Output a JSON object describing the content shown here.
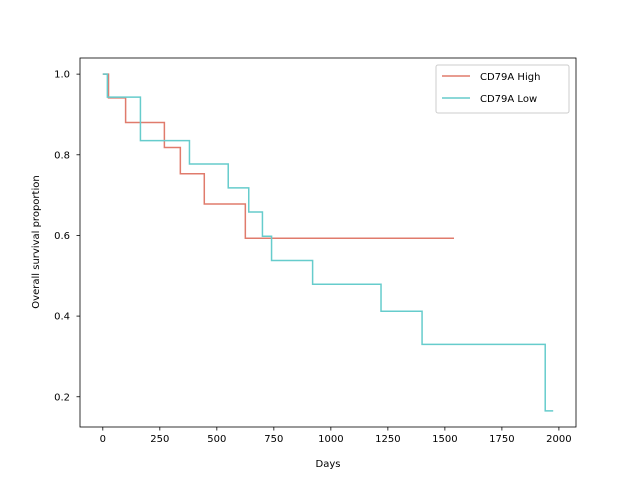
{
  "chart_data": {
    "type": "line",
    "title": "",
    "xlabel": "Days",
    "ylabel": "Overall survival proportion",
    "xlim": [
      -100,
      2075
    ],
    "ylim": [
      0.125,
      1.04
    ],
    "xticks": [
      0,
      250,
      500,
      750,
      1000,
      1250,
      1500,
      1750,
      2000
    ],
    "yticks": [
      0.2,
      0.4,
      0.6,
      0.8,
      1.0
    ],
    "xtick_labels": [
      "0",
      "250",
      "500",
      "750",
      "1000",
      "1250",
      "1500",
      "1750",
      "2000"
    ],
    "ytick_labels": [
      "0.2",
      "0.4",
      "0.6",
      "0.8",
      "1.0"
    ],
    "grid": false,
    "legend_position": "top-right",
    "step": "post",
    "series": [
      {
        "name": "CD79A High",
        "color": "#e07b6c",
        "x": [
          0,
          25,
          100,
          270,
          340,
          445,
          625,
          1540
        ],
        "y": [
          1.0,
          0.941,
          0.88,
          0.818,
          0.753,
          0.678,
          0.593,
          0.593
        ]
      },
      {
        "name": "CD79A Low",
        "color": "#66cccc",
        "x": [
          0,
          20,
          165,
          380,
          550,
          640,
          700,
          740,
          920,
          1220,
          1400,
          1940,
          1975
        ],
        "y": [
          1.0,
          0.943,
          0.835,
          0.777,
          0.718,
          0.658,
          0.598,
          0.538,
          0.479,
          0.412,
          0.33,
          0.165,
          0.165
        ]
      }
    ]
  }
}
